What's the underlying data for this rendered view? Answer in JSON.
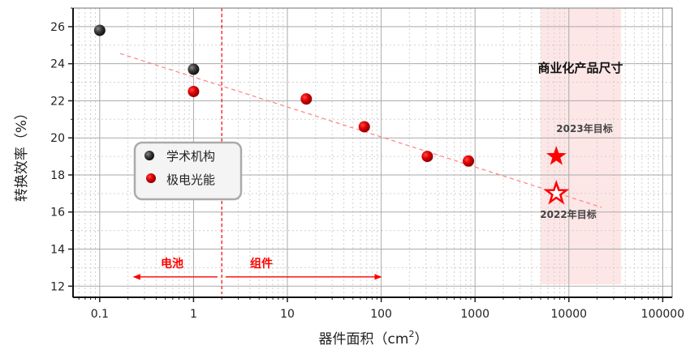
{
  "chart_data": {
    "type": "scatter",
    "title": "",
    "xlabel": "器件面积（cm",
    "xlabel_sup": "2",
    "xlabel_close": "）",
    "ylabel": "转换效率（%）",
    "xscale": "log",
    "xlim": [
      0.052,
      126000
    ],
    "ylim": [
      11.4,
      27.0
    ],
    "grid": true,
    "x_ticks": [
      0.1,
      1,
      10,
      100,
      1000,
      10000,
      100000
    ],
    "x_tick_labels": [
      "0.1",
      "1",
      "10",
      "100",
      "1000",
      "10000",
      "100000"
    ],
    "y_ticks": [
      12,
      14,
      16,
      18,
      20,
      22,
      24,
      26
    ],
    "y_tick_labels": [
      "12",
      "14",
      "16",
      "18",
      "20",
      "22",
      "24",
      "26"
    ],
    "legend_position": "center-left",
    "series": [
      {
        "name": "学术机构",
        "color": "#3a3a3a",
        "points": [
          [
            0.1,
            25.8
          ],
          [
            1,
            23.7
          ]
        ]
      },
      {
        "name": "极电光能",
        "color": "#e00000",
        "points": [
          [
            1,
            22.5
          ],
          [
            15.9,
            22.1
          ],
          [
            66,
            20.6
          ],
          [
            310,
            19.0
          ],
          [
            850,
            18.75
          ]
        ]
      }
    ],
    "targets": [
      {
        "label": "2023年目标",
        "x": 7350,
        "y": 19.0,
        "style": "filled-star",
        "color": "#ff0000"
      },
      {
        "label": "2022年目标",
        "x": 7350,
        "y": 17.0,
        "style": "hollow-star",
        "color": "#ff0000"
      }
    ],
    "trend_line": {
      "from": [
        0.165,
        24.55
      ],
      "to": [
        22400,
        16.25
      ],
      "color": "#ff8080",
      "style": "dashed"
    },
    "divider": {
      "x": 2,
      "color": "#ff0000",
      "style": "dashed"
    },
    "shaded_region": {
      "x_from": 5000,
      "x_to": 36000,
      "y_to": 12.1,
      "color": "#fde6e6",
      "label": "商业化产品尺寸"
    },
    "annotations": [
      {
        "text": "电池",
        "arrow_from": 1.8,
        "arrow_to": 0.23,
        "y": 12.5,
        "color": "#ff0000"
      },
      {
        "text": "组件",
        "arrow_from": 2.2,
        "arrow_to": 100,
        "y": 12.5,
        "color": "#ff0000"
      }
    ]
  }
}
